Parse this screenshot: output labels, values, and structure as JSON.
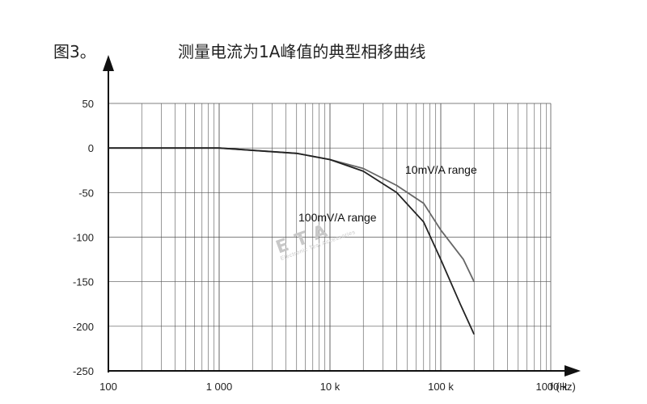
{
  "figure_label": "图3。",
  "chart_data": {
    "type": "line",
    "title": "测量电流为1A峰值的典型相移曲线",
    "xlabel": "f (Hz)",
    "ylabel": "",
    "x_scale": "log",
    "xlim": [
      100,
      2000000
    ],
    "ylim": [
      -250,
      50
    ],
    "grid": true,
    "x_tick_values": [
      100,
      1000,
      10000,
      100000,
      1000000
    ],
    "x_tick_labels": [
      "100",
      "1 000",
      "10 k",
      "100 k",
      "1000 k"
    ],
    "y_tick_values": [
      50,
      0,
      -50,
      -100,
      -150,
      -200,
      -250
    ],
    "y_tick_labels": [
      "50",
      "0",
      "-50",
      "-100",
      "-150",
      "-200",
      "-250"
    ],
    "series": [
      {
        "name": "10mV/A range",
        "color": "#666666",
        "x": [
          100,
          1000,
          5000,
          10000,
          20000,
          40000,
          70000,
          100000,
          160000,
          200000
        ],
        "y": [
          0,
          0,
          -6,
          -13,
          -23,
          -42,
          -62,
          -92,
          -125,
          -150
        ]
      },
      {
        "name": "100mV/A range",
        "color": "#222222",
        "x": [
          100,
          1000,
          5000,
          10000,
          20000,
          40000,
          70000,
          100000,
          150000,
          200000
        ],
        "y": [
          0,
          0,
          -6,
          -13,
          -26,
          -50,
          -83,
          -125,
          -175,
          -209
        ]
      }
    ]
  },
  "watermark": {
    "logo": "ETA",
    "subtitle": "Electronic Test Accessories"
  }
}
